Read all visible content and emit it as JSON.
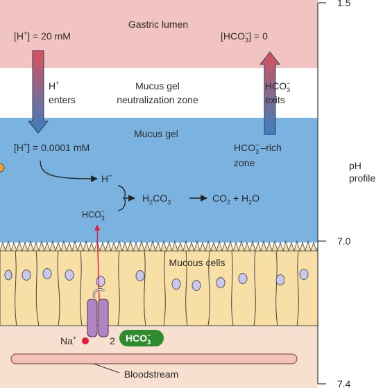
{
  "zones": {
    "gastric_lumen": "Gastric lumen",
    "neutral_line1": "Mucus gel",
    "neutral_line2": "neutralization zone",
    "mucus_gel": "Mucus gel",
    "mucous_cells": "Mucous cells",
    "bloodstream": "Bloodstream"
  },
  "labels": {
    "h_lumen_pre": "[H",
    "h_lumen_sup": "+",
    "h_lumen_post": "] = 20 mM",
    "hco3_lumen_pre": "[HCO",
    "hco3_lumen_sub": "3",
    "hco3_lumen_sup": "−",
    "hco3_lumen_post": "] = 0",
    "h_enters_1": "H",
    "h_enters_sup": "+",
    "h_enters_2": "enters",
    "hco3_exits_1": "HCO",
    "hco3_exits_sub": "3",
    "hco3_exits_sup": "−",
    "hco3_exits_2": "exits",
    "h_gel_pre": "[H",
    "h_gel_sup": "+",
    "h_gel_post": "] = 0.0001 mM",
    "rich_pre": "HCO",
    "rich_sub": "3",
    "rich_sup": "−",
    "rich_post": "–rich",
    "rich_zone": "zone"
  },
  "reaction": {
    "h": "H",
    "h_sup": "+",
    "hco3": "HCO",
    "hco3_sub": "3",
    "hco3_sup": "−",
    "h2co3_a": "H",
    "h2co3_sub": "2",
    "h2co3_b": "CO",
    "h2co3_sub2": "3",
    "co2_a": "CO",
    "co2_sub": "2",
    "plus_h2o": " + H",
    "h2o_sub": "2",
    "h2o_end": "O"
  },
  "transport": {
    "na": "Na",
    "na_sup": "+",
    "two": "2",
    "hco3_badge": "HCO",
    "hco3_badge_sub": "3",
    "hco3_badge_sup": "−"
  },
  "ph_scale": {
    "title_1": "pH",
    "title_2": "profile",
    "ticks": [
      "1.5",
      "7.0",
      "7.4"
    ]
  },
  "colors": {
    "lumen": "#f2c4c1",
    "neutral": "#ffffff",
    "gel": "#7ab3e0",
    "cells": "#f7dfa6",
    "blood": "#f8e0d0",
    "nucleus": "#c8c8ee",
    "na_dot": "#e8173c",
    "badge": "#2e8b2e",
    "transporter": "#b184c2"
  }
}
